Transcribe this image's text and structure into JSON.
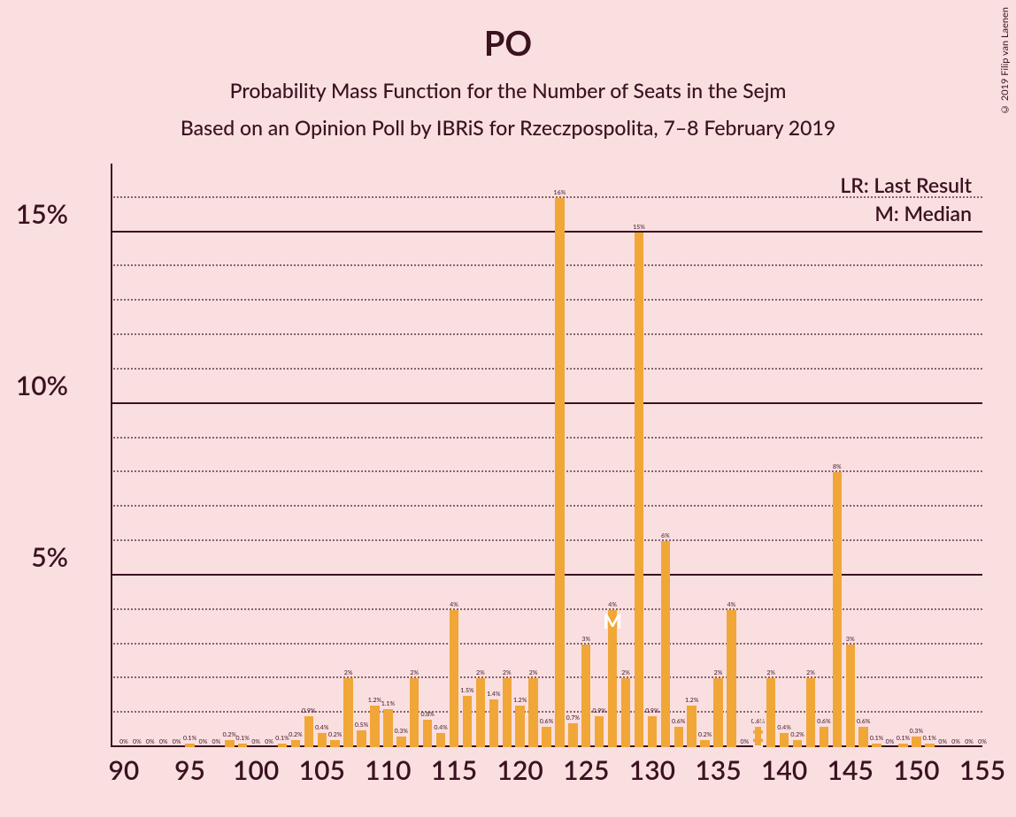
{
  "title": "PO",
  "subtitle1": "Probability Mass Function for the Number of Seats in the Sejm",
  "subtitle2": "Based on an Opinion Poll by IBRiS for Rzeczpospolita, 7–8 February 2019",
  "legend_lr": "LR: Last Result",
  "legend_m": "M: Median",
  "copyright": "© 2019 Filip van Laenen",
  "chart": {
    "type": "bar",
    "x_start": 89,
    "x_end": 155,
    "x_tick_start": 90,
    "x_tick_step": 5,
    "x_ticks": [
      "90",
      "95",
      "100",
      "105",
      "110",
      "115",
      "120",
      "125",
      "130",
      "135",
      "140",
      "145",
      "150",
      "155"
    ],
    "y_max": 17,
    "y_major_step": 5,
    "y_minor_step": 1,
    "y_ticks": [
      "5%",
      "10%",
      "15%"
    ],
    "bar_color": "#f1a638",
    "background_color": "#fadfe0",
    "text_color": "#3a1220",
    "bar_width_ratio": 0.7,
    "median_x": 127,
    "median_label": "M",
    "lr_x": 138,
    "lr_label": "LR",
    "data": [
      {
        "x": 90,
        "v": 0,
        "l": "0%"
      },
      {
        "x": 91,
        "v": 0,
        "l": "0%"
      },
      {
        "x": 92,
        "v": 0,
        "l": "0%"
      },
      {
        "x": 93,
        "v": 0,
        "l": "0%"
      },
      {
        "x": 94,
        "v": 0,
        "l": "0%"
      },
      {
        "x": 95,
        "v": 0.1,
        "l": "0.1%"
      },
      {
        "x": 96,
        "v": 0,
        "l": "0%"
      },
      {
        "x": 97,
        "v": 0,
        "l": "0%"
      },
      {
        "x": 98,
        "v": 0.2,
        "l": "0.2%"
      },
      {
        "x": 99,
        "v": 0.1,
        "l": "0.1%"
      },
      {
        "x": 100,
        "v": 0,
        "l": "0%"
      },
      {
        "x": 101,
        "v": 0,
        "l": "0%"
      },
      {
        "x": 102,
        "v": 0.1,
        "l": "0.1%"
      },
      {
        "x": 103,
        "v": 0.2,
        "l": "0.2%"
      },
      {
        "x": 104,
        "v": 0.9,
        "l": "0.9%"
      },
      {
        "x": 105,
        "v": 0.4,
        "l": "0.4%"
      },
      {
        "x": 106,
        "v": 0.2,
        "l": "0.2%"
      },
      {
        "x": 107,
        "v": 2,
        "l": "2%"
      },
      {
        "x": 108,
        "v": 0.5,
        "l": "0.5%"
      },
      {
        "x": 109,
        "v": 1.2,
        "l": "1.2%"
      },
      {
        "x": 110,
        "v": 1.1,
        "l": "1.1%"
      },
      {
        "x": 111,
        "v": 0.3,
        "l": "0.3%"
      },
      {
        "x": 112,
        "v": 2,
        "l": "2%"
      },
      {
        "x": 113,
        "v": 0.8,
        "l": "0.8%"
      },
      {
        "x": 114,
        "v": 0.4,
        "l": "0.4%"
      },
      {
        "x": 115,
        "v": 4,
        "l": "4%"
      },
      {
        "x": 116,
        "v": 1.5,
        "l": "1.5%"
      },
      {
        "x": 117,
        "v": 2,
        "l": "2%"
      },
      {
        "x": 118,
        "v": 1.4,
        "l": "1.4%"
      },
      {
        "x": 119,
        "v": 2,
        "l": "2%"
      },
      {
        "x": 120,
        "v": 1.2,
        "l": "1.2%"
      },
      {
        "x": 121,
        "v": 2,
        "l": "2%"
      },
      {
        "x": 122,
        "v": 0.6,
        "l": "0.6%"
      },
      {
        "x": 123,
        "v": 16,
        "l": "16%"
      },
      {
        "x": 124,
        "v": 0.7,
        "l": "0.7%"
      },
      {
        "x": 125,
        "v": 3,
        "l": "3%"
      },
      {
        "x": 126,
        "v": 0.9,
        "l": "0.9%"
      },
      {
        "x": 127,
        "v": 4,
        "l": "4%"
      },
      {
        "x": 128,
        "v": 2,
        "l": "2%"
      },
      {
        "x": 129,
        "v": 15,
        "l": "15%"
      },
      {
        "x": 130,
        "v": 0.9,
        "l": "0.9%"
      },
      {
        "x": 131,
        "v": 6,
        "l": "6%"
      },
      {
        "x": 132,
        "v": 0.6,
        "l": "0.6%"
      },
      {
        "x": 133,
        "v": 1.2,
        "l": "1.2%"
      },
      {
        "x": 134,
        "v": 0.2,
        "l": "0.2%"
      },
      {
        "x": 135,
        "v": 2,
        "l": "2%"
      },
      {
        "x": 136,
        "v": 4,
        "l": "4%"
      },
      {
        "x": 137,
        "v": 0,
        "l": "0%"
      },
      {
        "x": 138,
        "v": 0.6,
        "l": "0.6%"
      },
      {
        "x": 139,
        "v": 2,
        "l": "2%"
      },
      {
        "x": 140,
        "v": 0.4,
        "l": "0.4%"
      },
      {
        "x": 141,
        "v": 0.2,
        "l": "0.2%"
      },
      {
        "x": 142,
        "v": 2,
        "l": "2%"
      },
      {
        "x": 143,
        "v": 0.6,
        "l": "0.6%"
      },
      {
        "x": 144,
        "v": 8,
        "l": "8%"
      },
      {
        "x": 145,
        "v": 3,
        "l": "3%"
      },
      {
        "x": 146,
        "v": 0.6,
        "l": "0.6%"
      },
      {
        "x": 147,
        "v": 0.1,
        "l": "0.1%"
      },
      {
        "x": 148,
        "v": 0,
        "l": "0%"
      },
      {
        "x": 149,
        "v": 0.1,
        "l": "0.1%"
      },
      {
        "x": 150,
        "v": 0.3,
        "l": "0.3%"
      },
      {
        "x": 151,
        "v": 0.1,
        "l": "0.1%"
      },
      {
        "x": 152,
        "v": 0,
        "l": "0%"
      },
      {
        "x": 153,
        "v": 0,
        "l": "0%"
      },
      {
        "x": 154,
        "v": 0,
        "l": "0%"
      },
      {
        "x": 155,
        "v": 0,
        "l": "0%"
      }
    ]
  }
}
